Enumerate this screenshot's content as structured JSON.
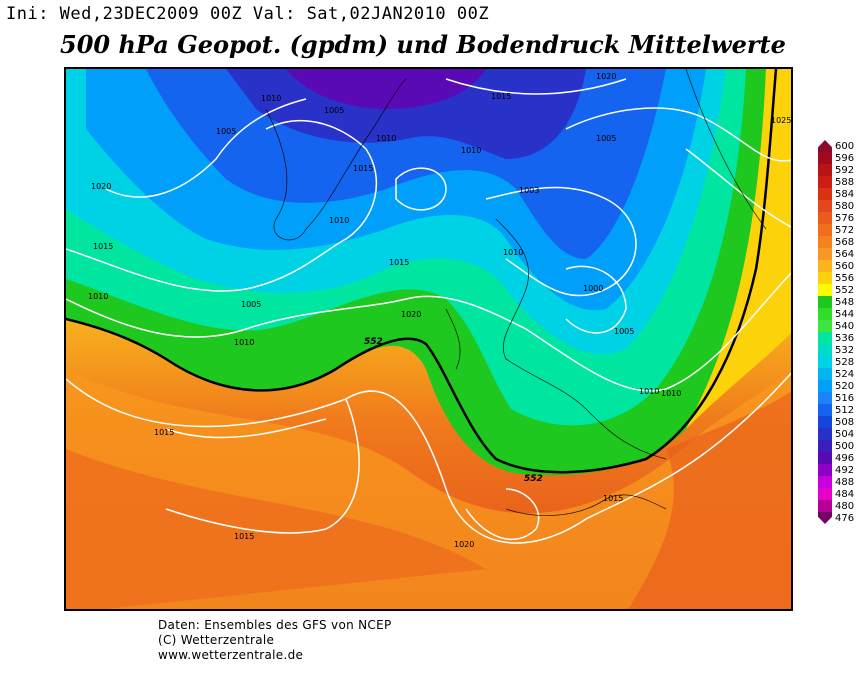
{
  "header": {
    "run_info": "Ini: Wed,23DEC2009 00Z Val: Sat,02JAN2010 00Z",
    "title": "500 hPa Geopot. (gpdm) und Bodendruck Mittelwerte"
  },
  "map": {
    "pressure_labels": [
      "1020",
      "1010",
      "1005",
      "1015",
      "1010",
      "1020",
      "1005",
      "1005",
      "1015",
      "1010",
      "1003",
      "1015",
      "1010",
      "1010",
      "1015",
      "1000",
      "1005",
      "1020",
      "1010",
      "1015",
      "1010",
      "1010",
      "1015",
      "1015",
      "1020",
      "1025"
    ],
    "geopotential_labels": [
      "552",
      "552"
    ],
    "colors": {
      "contour_white": "#ffffff",
      "thick_552": "#000000"
    }
  },
  "colorbar": {
    "levels": [
      "600",
      "596",
      "592",
      "588",
      "584",
      "580",
      "576",
      "572",
      "568",
      "564",
      "560",
      "556",
      "552",
      "548",
      "544",
      "540",
      "536",
      "532",
      "528",
      "524",
      "520",
      "516",
      "512",
      "508",
      "504",
      "500",
      "496",
      "492",
      "488",
      "484",
      "480",
      "476"
    ],
    "colors": [
      "#8b0a2c",
      "#a00a1e",
      "#b81414",
      "#cc1e14",
      "#dc3214",
      "#e4461e",
      "#ec5a1e",
      "#f06e1e",
      "#f4821e",
      "#f89628",
      "#fcb41e",
      "#fcd20a",
      "#fcfc00",
      "#1ec81e",
      "#32dc28",
      "#3ce63c",
      "#00e6a0",
      "#00dcc8",
      "#00d2e6",
      "#00b4f0",
      "#00a0fa",
      "#1e82fa",
      "#1464f0",
      "#1446dc",
      "#2832c8",
      "#3c1ebe",
      "#5a0ab4",
      "#8c00c8",
      "#c800dc",
      "#e600c8",
      "#b40096",
      "#780064"
    ]
  },
  "footer": {
    "line1": "Daten: Ensembles des GFS von NCEP",
    "line2": "(C) Wetterzentrale",
    "line3": "www.wetterzentrale.de"
  }
}
